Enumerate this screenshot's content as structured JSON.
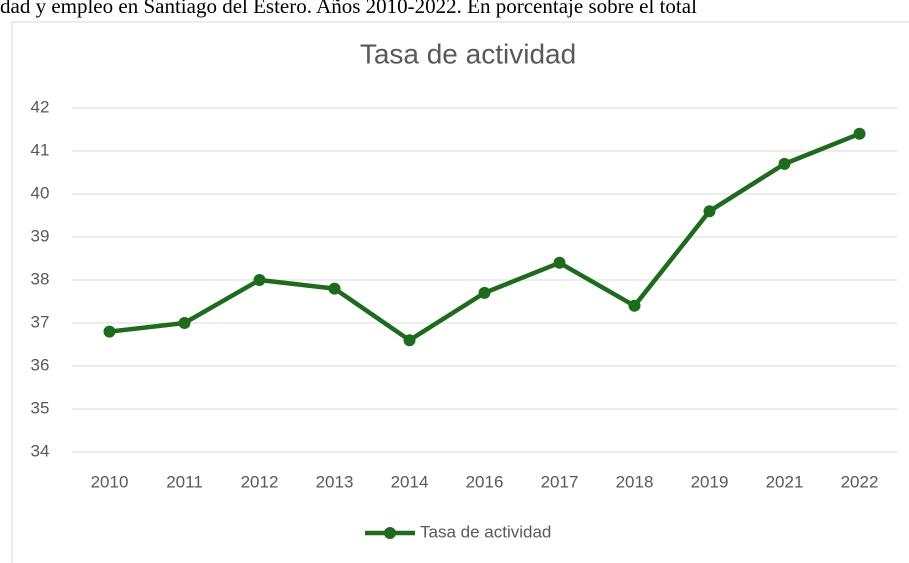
{
  "chart_data": {
    "type": "line",
    "caption": "dad y empleo en Santiago del Estero. Años 2010-2022. En porcentaje sobre el total",
    "title": "Tasa de actividad",
    "categories": [
      "2010",
      "2011",
      "2012",
      "2013",
      "2014",
      "2016",
      "2017",
      "2018",
      "2019",
      "2021",
      "2022"
    ],
    "series": [
      {
        "name": "Tasa de actividad",
        "color": "#1e6b1e",
        "values": [
          36.8,
          37.0,
          38.0,
          37.8,
          36.6,
          37.7,
          38.4,
          37.4,
          39.6,
          40.7,
          41.4
        ]
      }
    ],
    "ylim": [
      34,
      42
    ],
    "yticks": [
      34,
      35,
      36,
      37,
      38,
      39,
      40,
      41,
      42
    ],
    "grid": true,
    "legend": "bottom"
  }
}
